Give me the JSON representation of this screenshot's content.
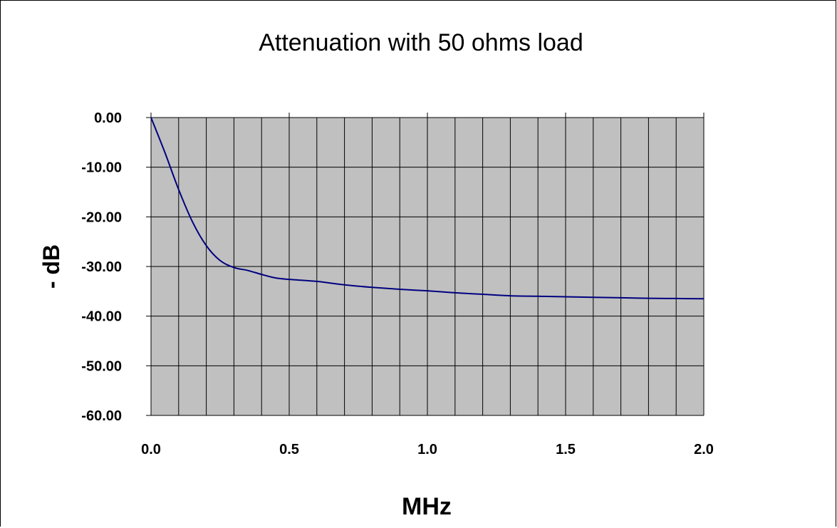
{
  "chart_data": {
    "type": "line",
    "title": "Attenuation with 50 ohms load",
    "xlabel": "MHz",
    "ylabel": "- dB",
    "xlim": [
      0.0,
      2.0
    ],
    "ylim": [
      -60,
      0
    ],
    "x_ticks": [
      "0.0",
      "0.5",
      "1.0",
      "1.5",
      "2.0"
    ],
    "y_ticks": [
      "0.00",
      "-10.00",
      "-20.00",
      "-30.00",
      "-40.00",
      "-50.00",
      "-60.00"
    ],
    "x_gridlines": [
      0.1,
      0.2,
      0.3,
      0.4,
      0.5,
      0.6,
      0.7,
      0.8,
      0.9,
      1.0,
      1.1,
      1.2,
      1.3,
      1.4,
      1.5,
      1.6,
      1.7,
      1.8,
      1.9
    ],
    "y_gridlines": [
      -10,
      -20,
      -30,
      -40,
      -50
    ],
    "plot_background": "#c0c0c0",
    "line_color": "#000080",
    "legend": "none",
    "series": [
      {
        "x": [
          0.0,
          0.05,
          0.1,
          0.15,
          0.2,
          0.25,
          0.3,
          0.35,
          0.4,
          0.45,
          0.5,
          0.6,
          0.7,
          0.8,
          0.9,
          1.0,
          1.1,
          1.2,
          1.3,
          1.4,
          1.5,
          1.6,
          1.7,
          1.8,
          1.9,
          2.0
        ],
        "y": [
          0.0,
          -7.0,
          -14.5,
          -21.0,
          -25.8,
          -28.8,
          -30.2,
          -30.8,
          -31.6,
          -32.3,
          -32.6,
          -33.0,
          -33.7,
          -34.2,
          -34.6,
          -34.9,
          -35.3,
          -35.6,
          -35.9,
          -36.0,
          -36.1,
          -36.2,
          -36.3,
          -36.4,
          -36.45,
          -36.5
        ]
      }
    ]
  }
}
